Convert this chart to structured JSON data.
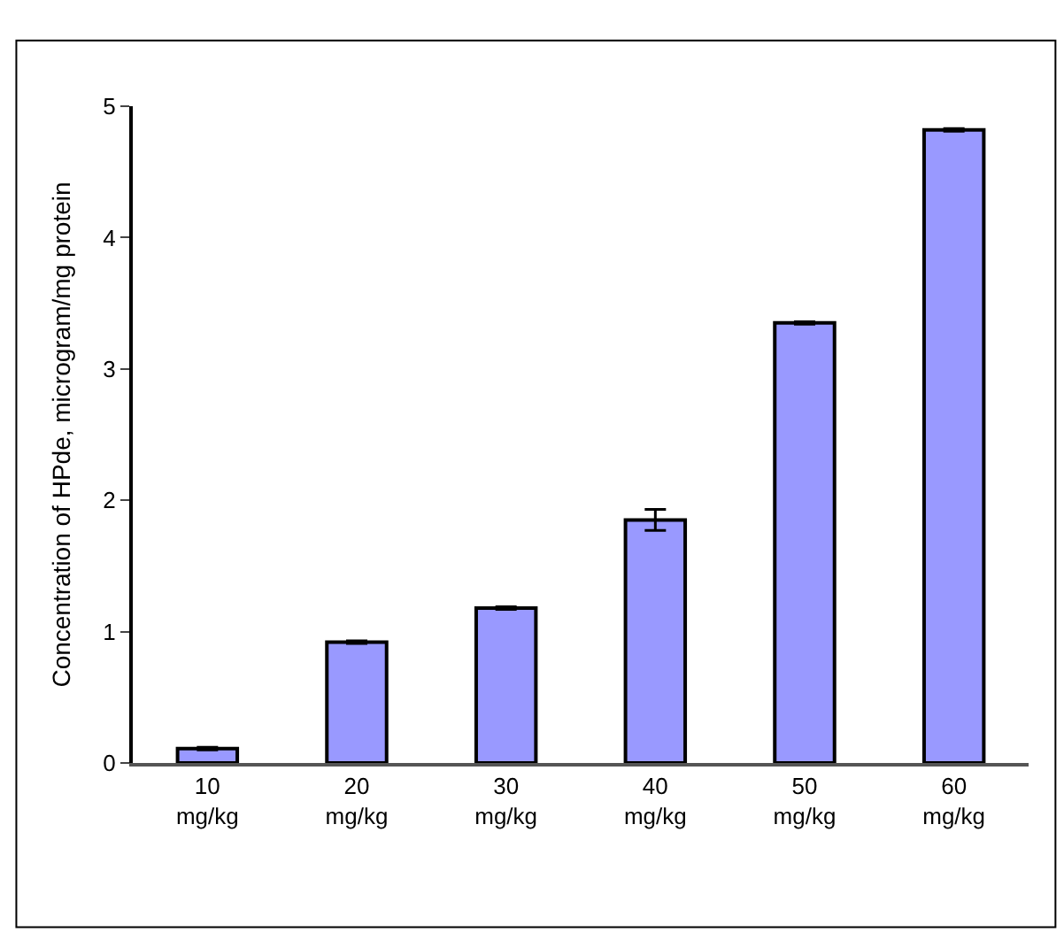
{
  "chart_data": {
    "type": "bar",
    "ylabel": "Concentration of HPde, microgram/mg protein",
    "categories": [
      "10 mg/kg",
      "20 mg/kg",
      "30 mg/kg",
      "40 mg/kg",
      "50 mg/kg",
      "60 mg/kg"
    ],
    "values": [
      0.11,
      0.92,
      1.18,
      1.85,
      3.35,
      4.82
    ],
    "errors": [
      0.01,
      0.01,
      0.01,
      0.08,
      0.01,
      0.01
    ],
    "color": "#9999ff",
    "ylim": [
      0,
      5
    ],
    "yticks": [
      0,
      1,
      2,
      3,
      4,
      5
    ],
    "grid": false
  }
}
